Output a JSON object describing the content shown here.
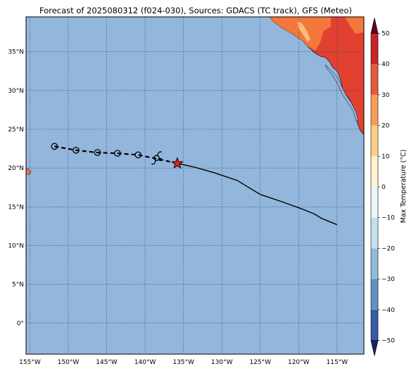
{
  "title": "Forecast of 2025080312 (f024-030), Sources: GDACS (TC track), GFS (Meteo)",
  "colorbar": {
    "label": "Max Temperature (°C)",
    "ticks": [
      "50",
      "40",
      "30",
      "20",
      "10",
      "0",
      "−10",
      "−20",
      "−30",
      "−40",
      "−50"
    ],
    "colors": [
      "#2b2f8c",
      "#3a5aa6",
      "#5f92c2",
      "#92bbd9",
      "#c5e0ef",
      "#ecf6f9",
      "#fff3cf",
      "#fdd088",
      "#f89d59",
      "#e75a3a",
      "#c8232a",
      "#8c0826"
    ],
    "extend_min_color": "#1a1f66",
    "extend_max_color": "#67001f"
  },
  "map": {
    "lon_range": [
      -155.5,
      -111.5
    ],
    "lat_range": [
      -4,
      39.5
    ],
    "ocean_color": "#93b6dc",
    "gridline_color": "#2b3f6a",
    "lon_labels": [
      "155°W",
      "150°W",
      "145°W",
      "140°W",
      "135°W",
      "130°W",
      "125°W",
      "120°W",
      "115°W"
    ],
    "lat_labels": [
      "35°N",
      "30°N",
      "25°N",
      "20°N",
      "15°N",
      "10°N",
      "5°N",
      "0°"
    ]
  },
  "track": {
    "past_positions": [
      [
        -151.8,
        22.8
      ],
      [
        -149.0,
        22.3
      ],
      [
        -146.2,
        22.0
      ],
      [
        -143.6,
        21.9
      ],
      [
        -140.9,
        21.7
      ],
      [
        -138.0,
        21.1
      ]
    ],
    "current_position": [
      -135.8,
      20.6
    ],
    "storm_symbol_position": [
      -138.5,
      21.3
    ],
    "forecast_path": [
      [
        -135.8,
        20.6
      ],
      [
        -133.5,
        20.1
      ],
      [
        -131.0,
        19.4
      ],
      [
        -128.0,
        18.4
      ],
      [
        -125.0,
        16.6
      ],
      [
        -122.0,
        15.6
      ],
      [
        -119.5,
        14.7
      ],
      [
        -118.0,
        14.1
      ],
      [
        -117.0,
        13.5
      ],
      [
        -116.0,
        13.1
      ],
      [
        -115.0,
        12.7
      ]
    ]
  }
}
